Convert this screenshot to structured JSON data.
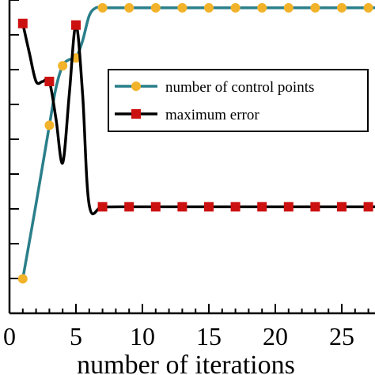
{
  "chart_data": {
    "type": "line",
    "xlabel": "number of iterations",
    "ylabel": "",
    "xlim": [
      0,
      27.5
    ],
    "ylim": [
      0,
      1
    ],
    "x_ticks": [
      0,
      5,
      10,
      15,
      20,
      25
    ],
    "x_tick_labels": [
      "0",
      "5",
      "10",
      "15",
      "20",
      "25"
    ],
    "legend_position": "top-right",
    "grid": false,
    "series": [
      {
        "name": "number of control points",
        "color": "#2a7f8a",
        "marker": "circle",
        "marker_color": "#f2b32b",
        "x": [
          1,
          3,
          4,
          5,
          7,
          9,
          11,
          13,
          15,
          17,
          19,
          21,
          23,
          25,
          27
        ],
        "y": [
          0.11,
          0.6,
          0.79,
          0.815,
          0.975,
          0.975,
          0.975,
          0.975,
          0.975,
          0.975,
          0.975,
          0.975,
          0.975,
          0.975,
          0.975
        ],
        "smooth_x": [
          1,
          2,
          3,
          3.5,
          4,
          4.5,
          5,
          5.5,
          6,
          6.5,
          7,
          9,
          11,
          13,
          15,
          17,
          19,
          21,
          23,
          25,
          27.5
        ],
        "smooth_y": [
          0.11,
          0.35,
          0.6,
          0.72,
          0.79,
          0.81,
          0.815,
          0.87,
          0.95,
          0.975,
          0.975,
          0.975,
          0.975,
          0.975,
          0.975,
          0.975,
          0.975,
          0.975,
          0.975,
          0.975,
          0.975
        ]
      },
      {
        "name": "maximum error",
        "color": "#000000",
        "marker": "square",
        "marker_color": "#cc1111",
        "x": [
          1,
          3,
          5,
          7,
          9,
          11,
          13,
          15,
          17,
          19,
          21,
          23,
          25,
          27
        ],
        "y": [
          0.925,
          0.74,
          0.92,
          0.34,
          0.34,
          0.34,
          0.34,
          0.34,
          0.34,
          0.34,
          0.34,
          0.34,
          0.34,
          0.34
        ],
        "smooth_x": [
          1,
          1.5,
          2,
          2.5,
          3,
          3.5,
          4,
          4.5,
          5,
          5.5,
          6,
          7,
          9,
          11,
          13,
          15,
          17,
          19,
          21,
          23,
          25,
          27.5
        ],
        "smooth_y": [
          0.925,
          0.83,
          0.74,
          0.74,
          0.74,
          0.62,
          0.48,
          0.7,
          0.92,
          0.7,
          0.345,
          0.34,
          0.34,
          0.34,
          0.34,
          0.34,
          0.34,
          0.34,
          0.34,
          0.34,
          0.34,
          0.34
        ]
      }
    ]
  }
}
